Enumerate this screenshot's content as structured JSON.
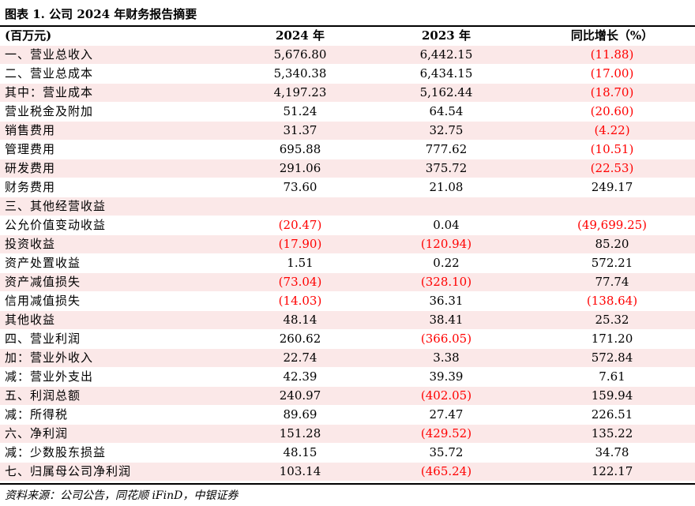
{
  "title": "图表 1. 公司 2024 年财务报告摘要",
  "headers": [
    "(百万元)",
    "2024 年",
    "2023 年",
    "同比增长（%）"
  ],
  "rows": [
    {
      "label": "一、营业总收入",
      "v2024": "5,676.80",
      "v2023": "6,442.15",
      "yoy": "(11.88)",
      "neg": [
        false,
        false,
        true
      ],
      "shaded": true
    },
    {
      "label": "二、营业总成本",
      "v2024": "5,340.38",
      "v2023": "6,434.15",
      "yoy": "(17.00)",
      "neg": [
        false,
        false,
        true
      ],
      "shaded": false
    },
    {
      "label": "其中：营业成本",
      "v2024": "4,197.23",
      "v2023": "5,162.44",
      "yoy": "(18.70)",
      "neg": [
        false,
        false,
        true
      ],
      "shaded": true
    },
    {
      "label": "营业税金及附加",
      "v2024": "51.24",
      "v2023": "64.54",
      "yoy": "(20.60)",
      "neg": [
        false,
        false,
        true
      ],
      "shaded": false
    },
    {
      "label": "销售费用",
      "v2024": "31.37",
      "v2023": "32.75",
      "yoy": "(4.22)",
      "neg": [
        false,
        false,
        true
      ],
      "shaded": true
    },
    {
      "label": "管理费用",
      "v2024": "695.88",
      "v2023": "777.62",
      "yoy": "(10.51)",
      "neg": [
        false,
        false,
        true
      ],
      "shaded": false
    },
    {
      "label": "研发费用",
      "v2024": "291.06",
      "v2023": "375.72",
      "yoy": "(22.53)",
      "neg": [
        false,
        false,
        true
      ],
      "shaded": true
    },
    {
      "label": "财务费用",
      "v2024": "73.60",
      "v2023": "21.08",
      "yoy": "249.17",
      "neg": [
        false,
        false,
        false
      ],
      "shaded": false
    },
    {
      "label": "三、其他经营收益",
      "v2024": "",
      "v2023": "",
      "yoy": "",
      "neg": [
        false,
        false,
        false
      ],
      "shaded": true
    },
    {
      "label": "公允价值变动收益",
      "v2024": "(20.47)",
      "v2023": "0.04",
      "yoy": "(49,699.25)",
      "neg": [
        true,
        false,
        true
      ],
      "shaded": false
    },
    {
      "label": "投资收益",
      "v2024": "(17.90)",
      "v2023": "(120.94)",
      "yoy": "85.20",
      "neg": [
        true,
        true,
        false
      ],
      "shaded": true
    },
    {
      "label": "资产处置收益",
      "v2024": "1.51",
      "v2023": "0.22",
      "yoy": "572.21",
      "neg": [
        false,
        false,
        false
      ],
      "shaded": false
    },
    {
      "label": "资产减值损失",
      "v2024": "(73.04)",
      "v2023": "(328.10)",
      "yoy": "77.74",
      "neg": [
        true,
        true,
        false
      ],
      "shaded": true
    },
    {
      "label": "信用减值损失",
      "v2024": "(14.03)",
      "v2023": "36.31",
      "yoy": "(138.64)",
      "neg": [
        true,
        false,
        true
      ],
      "shaded": false
    },
    {
      "label": "其他收益",
      "v2024": "48.14",
      "v2023": "38.41",
      "yoy": "25.32",
      "neg": [
        false,
        false,
        false
      ],
      "shaded": true
    },
    {
      "label": "四、营业利润",
      "v2024": "260.62",
      "v2023": "(366.05)",
      "yoy": "171.20",
      "neg": [
        false,
        true,
        false
      ],
      "shaded": false
    },
    {
      "label": "加：营业外收入",
      "v2024": "22.74",
      "v2023": "3.38",
      "yoy": "572.84",
      "neg": [
        false,
        false,
        false
      ],
      "shaded": true
    },
    {
      "label": "减：营业外支出",
      "v2024": "42.39",
      "v2023": "39.39",
      "yoy": "7.61",
      "neg": [
        false,
        false,
        false
      ],
      "shaded": false
    },
    {
      "label": "五、利润总额",
      "v2024": "240.97",
      "v2023": "(402.05)",
      "yoy": "159.94",
      "neg": [
        false,
        true,
        false
      ],
      "shaded": true
    },
    {
      "label": "减：所得税",
      "v2024": "89.69",
      "v2023": "27.47",
      "yoy": "226.51",
      "neg": [
        false,
        false,
        false
      ],
      "shaded": false
    },
    {
      "label": "六、净利润",
      "v2024": "151.28",
      "v2023": "(429.52)",
      "yoy": "135.22",
      "neg": [
        false,
        true,
        false
      ],
      "shaded": true
    },
    {
      "label": "减：少数股东损益",
      "v2024": "48.15",
      "v2023": "35.72",
      "yoy": "34.78",
      "neg": [
        false,
        false,
        false
      ],
      "shaded": false
    },
    {
      "label": "七、归属母公司净利润",
      "v2024": "103.14",
      "v2023": "(465.24)",
      "yoy": "122.17",
      "neg": [
        false,
        true,
        false
      ],
      "shaded": true
    }
  ],
  "source": "资料来源：公司公告，同花顺 iFinD，中银证券",
  "colors": {
    "negative": "#ff0000",
    "row_shade": "#fbe8e8"
  }
}
